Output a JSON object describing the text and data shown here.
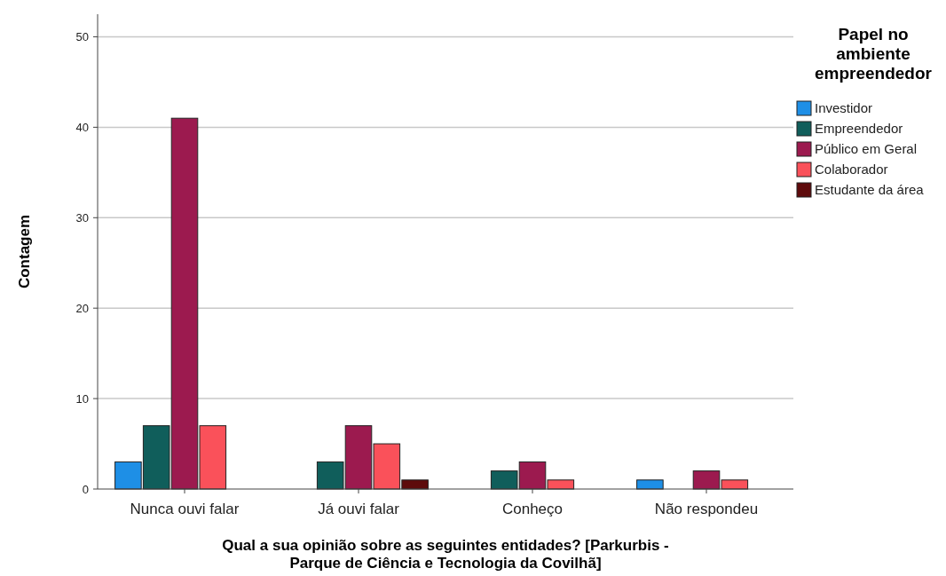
{
  "chart_data": {
    "type": "bar",
    "xlabel": "Qual a sua opinião sobre as seguintes entidades? [Parkurbis -\nParque de Ciência e Tecnologia da Covilhã]",
    "ylabel": "Contagem",
    "legend_title": "Papel no\nambiente\nempreendedor",
    "categories": [
      "Nunca ouvi falar",
      "Já ouvi falar",
      "Conheço",
      "Não respondeu"
    ],
    "series": [
      {
        "name": "Investidor",
        "color": "#1e8fe6",
        "values": [
          3,
          null,
          null,
          1
        ]
      },
      {
        "name": "Empreendedor",
        "color": "#105e5b",
        "values": [
          7,
          3,
          2,
          null
        ]
      },
      {
        "name": "Público em Geral",
        "color": "#9c1a4f",
        "values": [
          41,
          7,
          3,
          2
        ]
      },
      {
        "name": "Colaborador",
        "color": "#fa515a",
        "values": [
          7,
          5,
          1,
          1
        ]
      },
      {
        "name": "Estudante da área",
        "color": "#5e0b0c",
        "values": [
          null,
          1,
          null,
          null
        ]
      }
    ],
    "ylim": [
      0,
      52.5
    ],
    "yticks": [
      0,
      10,
      20,
      30,
      40,
      50
    ],
    "grid": "y",
    "legend": "top right"
  }
}
